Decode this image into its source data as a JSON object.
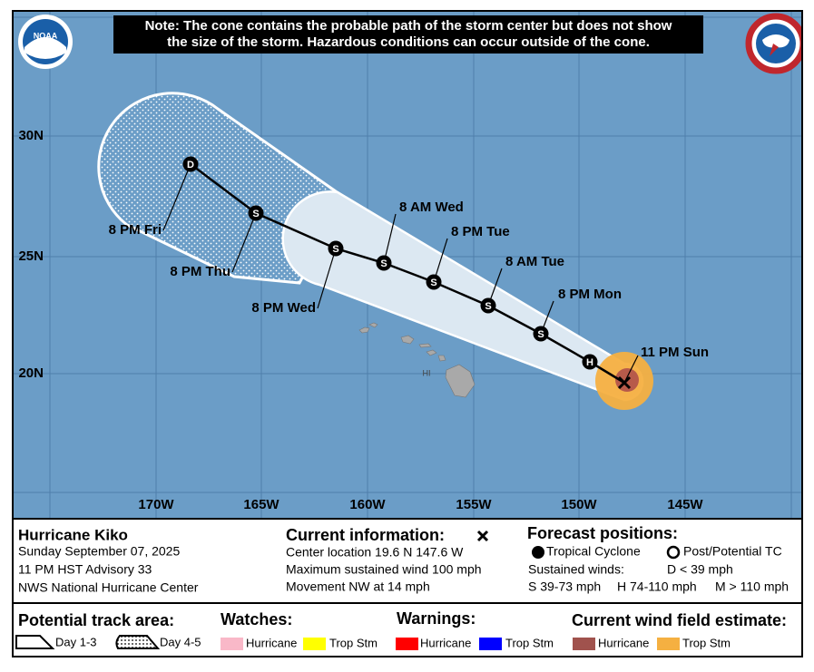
{
  "note": {
    "lines": [
      "Note: The cone contains the probable path of the storm center but does not show",
      "the size of the storm. Hazardous conditions can occur outside of the cone."
    ]
  },
  "logos": {
    "left": "NOAA"
  },
  "map": {
    "lat_labels": [
      "30N",
      "25N",
      "20N"
    ],
    "lon_labels": [
      "170W",
      "165W",
      "160W",
      "155W",
      "150W",
      "145W"
    ],
    "island_label": "HI",
    "current_label": "11 PM Sun",
    "points": [
      {
        "symbol": "H"
      },
      {
        "symbol": "S",
        "label": "8 PM Mon"
      },
      {
        "symbol": "S",
        "label": "8 AM Tue"
      },
      {
        "symbol": "S",
        "label": "8 PM Tue"
      },
      {
        "symbol": "S",
        "label": "8 AM Wed"
      },
      {
        "symbol": "S",
        "label": "8 PM Wed"
      },
      {
        "symbol": "S",
        "label": "8 PM Thu"
      },
      {
        "symbol": "D",
        "label": "8 PM Fri"
      }
    ]
  },
  "storm": {
    "name": "Hurricane Kiko",
    "date": "Sunday September 07, 2025",
    "advisory": "11 PM HST Advisory 33",
    "center": "NWS National Hurricane Center"
  },
  "current": {
    "title": "Current information:",
    "lines": [
      "Center location 19.6 N 147.6 W",
      "Maximum sustained wind 100 mph",
      "Movement NW at 14 mph"
    ]
  },
  "forecast": {
    "title": "Forecast positions:",
    "tropical": "Tropical Cyclone",
    "post": "Post/Potential TC",
    "winds_title": "Sustained winds:",
    "d": "D < 39 mph",
    "s": "S 39-73 mph",
    "h": "H 74-110 mph",
    "m": "M > 110 mph"
  },
  "legend": {
    "track_title": "Potential track area:",
    "day13": "Day 1-3",
    "day45": "Day 4-5",
    "watches_title": "Watches:",
    "watch_hurricane": "Hurricane",
    "watch_ts": "Trop Stm",
    "warnings_title": "Warnings:",
    "warn_hurricane": "Hurricane",
    "warn_ts": "Trop Stm",
    "wind_title": "Current wind field estimate:",
    "wind_hurricane": "Hurricane",
    "wind_ts": "Trop Stm"
  }
}
